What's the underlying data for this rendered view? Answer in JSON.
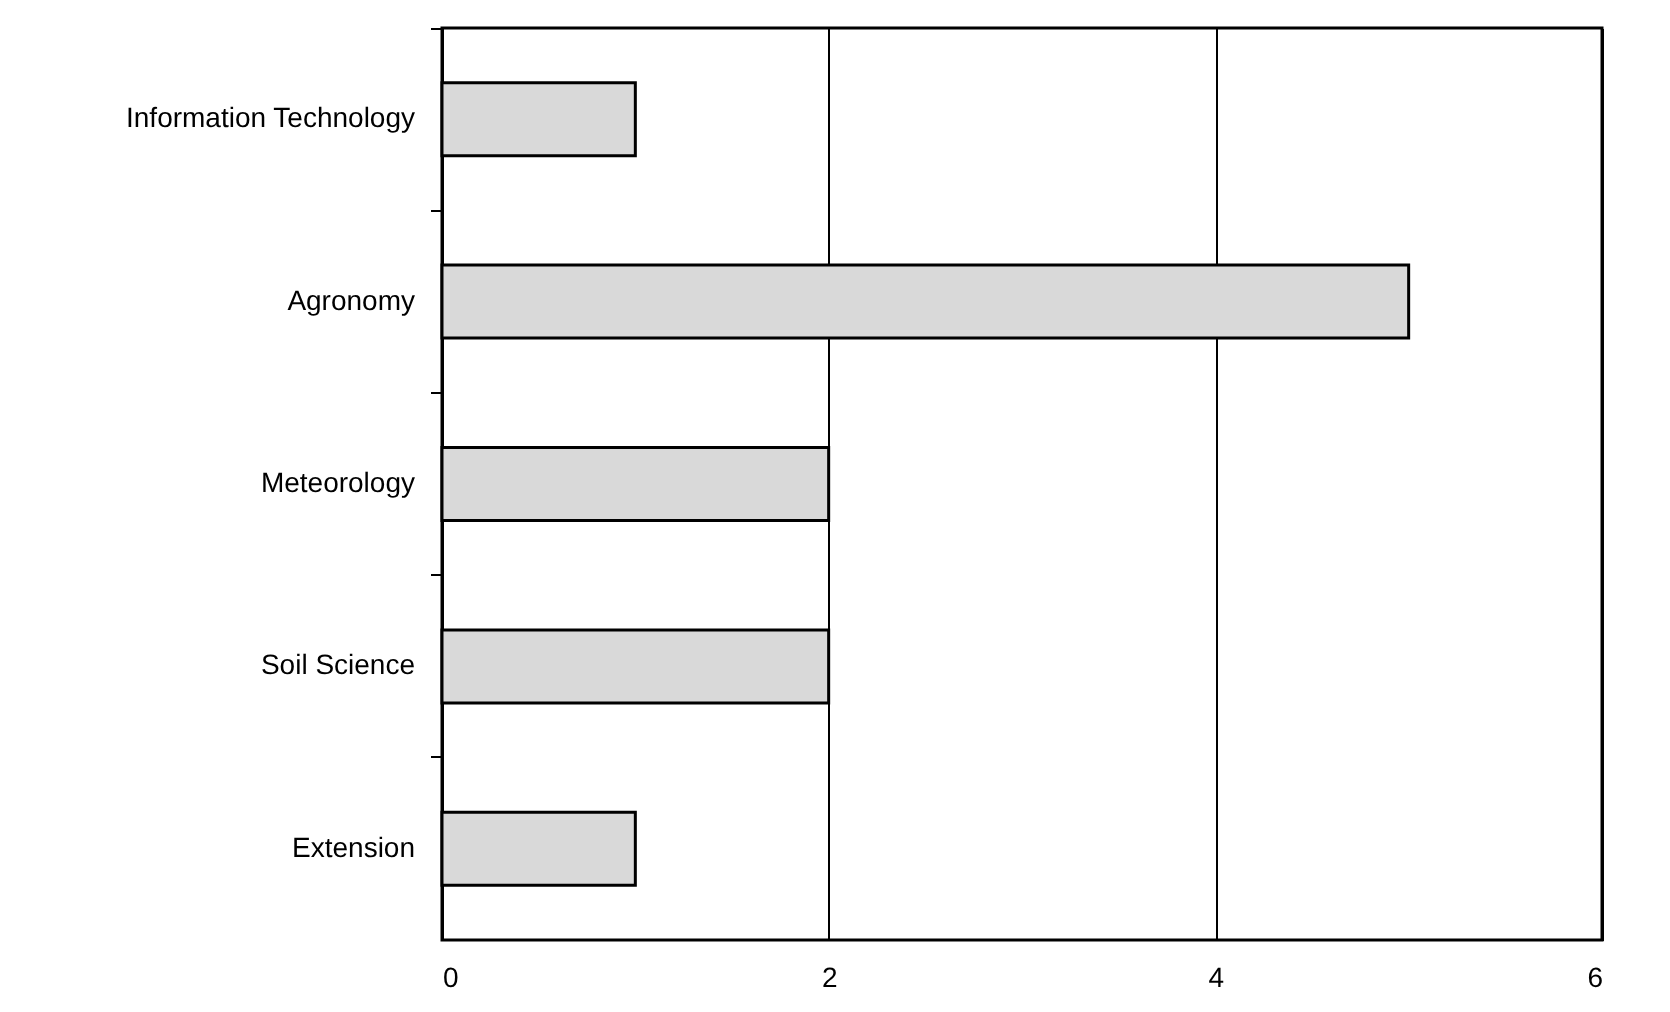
{
  "chart_data": {
    "type": "bar",
    "orientation": "horizontal",
    "categories": [
      "Information Technology",
      "Agronomy",
      "Meteorology",
      "Soil Science",
      "Extension"
    ],
    "values": [
      1,
      5,
      2,
      2,
      1
    ],
    "color": "#d9d9d9",
    "xlim": [
      0,
      6
    ],
    "xticks": [
      0,
      2,
      4,
      6
    ],
    "grid": "x"
  }
}
